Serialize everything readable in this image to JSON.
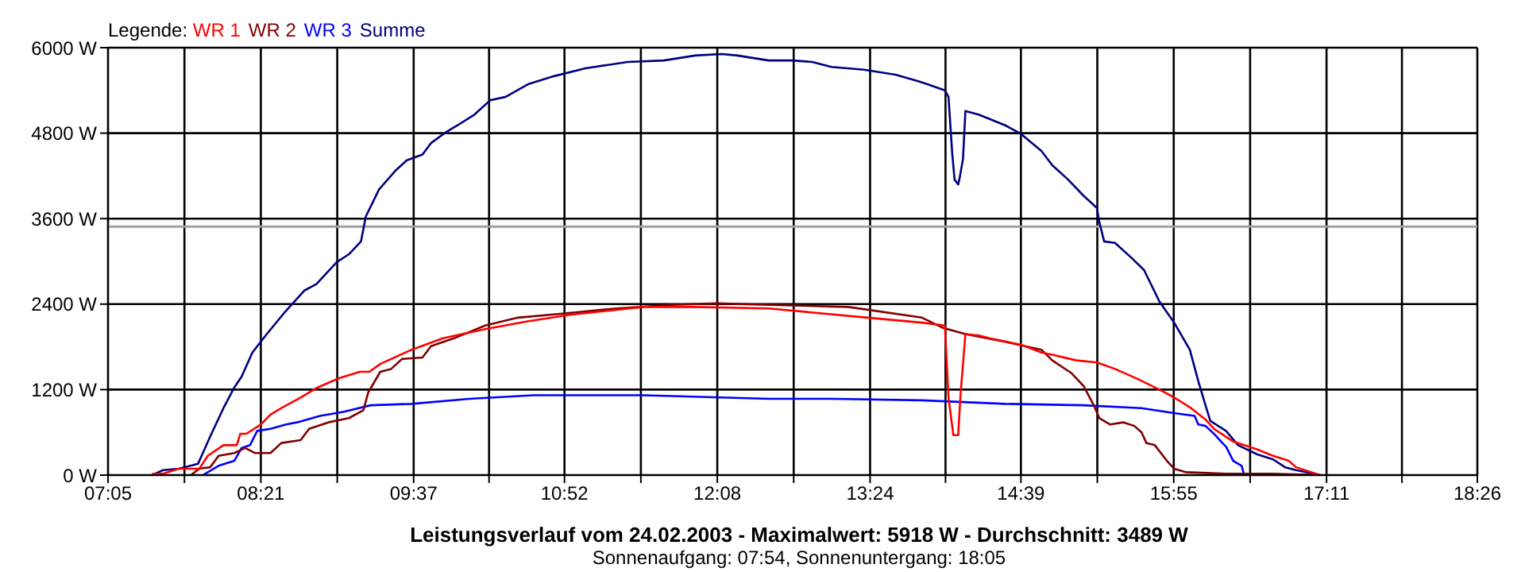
{
  "chart_data": {
    "type": "line",
    "title": "Leistungsverlauf vom 24.02.2003 - Maximalwert: 5918 W - Durchschnitt: 3489 W",
    "subtitle": "Sonnenaufgang: 07:54, Sonnenuntergang: 18:05",
    "legend_title": "Legende:",
    "legend": "top left",
    "grid": true,
    "marker": "none",
    "line_style": "solid",
    "xlim": [
      7.0833,
      18.4333
    ],
    "xticks": [
      {
        "value": 7.0833,
        "label": "07:05"
      },
      {
        "value": 7.7167,
        "label": null
      },
      {
        "value": 8.35,
        "label": "08:21"
      },
      {
        "value": 8.9833,
        "label": null
      },
      {
        "value": 9.6167,
        "label": "09:37"
      },
      {
        "value": 10.2417,
        "label": null
      },
      {
        "value": 10.8667,
        "label": "10:52"
      },
      {
        "value": 11.5,
        "label": null
      },
      {
        "value": 12.1333,
        "label": "12:08"
      },
      {
        "value": 12.7667,
        "label": null
      },
      {
        "value": 13.4,
        "label": "13:24"
      },
      {
        "value": 14.025,
        "label": null
      },
      {
        "value": 14.65,
        "label": "14:39"
      },
      {
        "value": 15.2833,
        "label": null
      },
      {
        "value": 15.9167,
        "label": "15:55"
      },
      {
        "value": 16.55,
        "label": null
      },
      {
        "value": 17.1833,
        "label": "17:11"
      },
      {
        "value": 17.8083,
        "label": null
      },
      {
        "value": 18.4333,
        "label": "18:26"
      }
    ],
    "ylim": [
      0,
      6000
    ],
    "yticks": [
      {
        "value": 0,
        "label": "0 W"
      },
      {
        "value": 1200,
        "label": "1200 W"
      },
      {
        "value": 2400,
        "label": "2400 W"
      },
      {
        "value": 3600,
        "label": "3600 W"
      },
      {
        "value": 4800,
        "label": "4800 W"
      },
      {
        "value": 6000,
        "label": "6000 W"
      }
    ],
    "ref_lines": [
      {
        "axis": "y",
        "value": 3489,
        "label": null,
        "color": "#a0a0a0"
      }
    ],
    "series": [
      {
        "name": "WR 1",
        "color": "#ff0000",
        "x": [
          7.45,
          7.54,
          7.67,
          7.84,
          7.91,
          8.04,
          8.15,
          8.18,
          8.23,
          8.35,
          8.43,
          8.52,
          8.68,
          8.82,
          9.0,
          9.17,
          9.25,
          9.34,
          9.6,
          9.86,
          10.21,
          10.57,
          10.91,
          11.52,
          11.95,
          12.56,
          13.38,
          13.83,
          14.02,
          14.05,
          14.09,
          14.13,
          14.15,
          14.19,
          14.3,
          14.39,
          14.65,
          14.82,
          14.91,
          15.11,
          15.28,
          15.43,
          15.63,
          15.82,
          15.92,
          16.06,
          16.18,
          16.25,
          16.41,
          16.61,
          16.74,
          16.87,
          16.93,
          17.13
        ],
        "values": [
          20,
          20,
          90,
          90,
          270,
          420,
          420,
          580,
          580,
          710,
          850,
          940,
          1090,
          1230,
          1360,
          1450,
          1450,
          1560,
          1760,
          1920,
          2050,
          2160,
          2250,
          2360,
          2360,
          2340,
          2210,
          2140,
          2100,
          1090,
          560,
          560,
          1140,
          1980,
          1960,
          1920,
          1830,
          1720,
          1690,
          1610,
          1580,
          1490,
          1340,
          1180,
          1090,
          940,
          780,
          650,
          470,
          360,
          270,
          200,
          110,
          0
        ]
      },
      {
        "name": "WR 2",
        "color": "#800000",
        "x": [
          7.77,
          7.84,
          7.93,
          8.0,
          8.13,
          8.22,
          8.3,
          8.43,
          8.52,
          8.68,
          8.75,
          8.91,
          9.08,
          9.2,
          9.24,
          9.34,
          9.43,
          9.52,
          9.69,
          9.76,
          9.95,
          10.21,
          10.48,
          10.87,
          11.3,
          11.74,
          12.13,
          12.56,
          13.22,
          13.83,
          14.0,
          14.19,
          14.52,
          14.82,
          14.91,
          15.07,
          15.17,
          15.26,
          15.3,
          15.39,
          15.5,
          15.59,
          15.65,
          15.69,
          15.76,
          15.86,
          15.92,
          16.02,
          16.35,
          16.74,
          17.13
        ],
        "values": [
          0,
          90,
          110,
          270,
          310,
          380,
          310,
          310,
          450,
          490,
          650,
          740,
          800,
          910,
          1160,
          1450,
          1490,
          1630,
          1650,
          1810,
          1920,
          2100,
          2210,
          2270,
          2340,
          2390,
          2410,
          2390,
          2360,
          2210,
          2070,
          1980,
          1870,
          1760,
          1610,
          1430,
          1250,
          960,
          800,
          710,
          740,
          690,
          600,
          450,
          420,
          200,
          90,
          40,
          20,
          20,
          0
        ]
      },
      {
        "name": "WR 3",
        "color": "#0000ff",
        "x": [
          7.87,
          8.0,
          8.13,
          8.19,
          8.26,
          8.32,
          8.43,
          8.56,
          8.65,
          8.84,
          9.04,
          9.26,
          9.6,
          10.08,
          10.61,
          11.52,
          12.56,
          13.08,
          13.83,
          14.52,
          15.17,
          15.65,
          15.92,
          16.09,
          16.12,
          16.18,
          16.25,
          16.32,
          16.35,
          16.41,
          16.48,
          16.5
        ],
        "values": [
          0,
          130,
          200,
          380,
          420,
          620,
          650,
          710,
          740,
          830,
          890,
          980,
          1000,
          1070,
          1120,
          1120,
          1070,
          1070,
          1050,
          1000,
          980,
          940,
          870,
          830,
          710,
          690,
          580,
          450,
          400,
          200,
          130,
          0
        ]
      },
      {
        "name": "Summe",
        "color": "#000080",
        "x": [
          7.45,
          7.54,
          7.67,
          7.83,
          7.93,
          8.04,
          8.13,
          8.19,
          8.28,
          8.39,
          8.54,
          8.71,
          8.81,
          8.98,
          9.08,
          9.18,
          9.22,
          9.33,
          9.47,
          9.56,
          9.69,
          9.76,
          9.89,
          9.98,
          10.12,
          10.25,
          10.38,
          10.57,
          10.78,
          11.04,
          11.39,
          11.69,
          11.95,
          12.17,
          12.3,
          12.56,
          12.76,
          12.92,
          13.08,
          13.35,
          13.61,
          13.8,
          13.87,
          14.02,
          14.05,
          14.08,
          14.1,
          14.13,
          14.14,
          14.17,
          14.19,
          14.3,
          14.39,
          14.52,
          14.65,
          14.82,
          14.91,
          15.04,
          15.17,
          15.28,
          15.3,
          15.34,
          15.43,
          15.56,
          15.67,
          15.8,
          15.92,
          16.05,
          16.12,
          16.18,
          16.22,
          16.35,
          16.45,
          16.61,
          16.74,
          16.84,
          16.93,
          17.13
        ],
        "values": [
          0,
          70,
          90,
          160,
          540,
          940,
          1230,
          1380,
          1720,
          1960,
          2270,
          2590,
          2680,
          2990,
          3100,
          3280,
          3630,
          4010,
          4280,
          4420,
          4500,
          4660,
          4820,
          4910,
          5060,
          5260,
          5310,
          5490,
          5600,
          5710,
          5800,
          5820,
          5890,
          5910,
          5890,
          5820,
          5820,
          5800,
          5730,
          5690,
          5620,
          5530,
          5490,
          5400,
          5310,
          4530,
          4150,
          4080,
          4150,
          4440,
          5110,
          5060,
          5000,
          4910,
          4790,
          4550,
          4350,
          4150,
          3920,
          3750,
          3550,
          3280,
          3260,
          3060,
          2880,
          2430,
          2140,
          1760,
          1320,
          980,
          760,
          620,
          420,
          290,
          220,
          110,
          70,
          0
        ]
      }
    ]
  }
}
